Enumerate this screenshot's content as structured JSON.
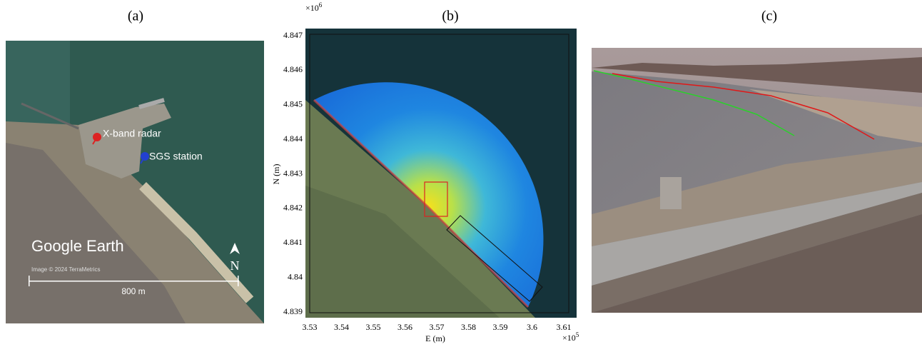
{
  "panels": [
    {
      "label": "(a)",
      "annotations": [
        "X-band radar",
        "SGS station"
      ],
      "watermark": "Google Earth",
      "credit": "Image © 2024 TerraMetrics",
      "scale": "800 m",
      "north": "N"
    },
    {
      "label": "(b)",
      "ylabel": "N (m)",
      "xlabel": "E (m)",
      "yexponent": "×10",
      "yexponent_power": "6",
      "xexponent": "×10",
      "xexponent_power": "5",
      "yticks": [
        "4.847",
        "4.846",
        "4.845",
        "4.844",
        "4.843",
        "4.842",
        "4.841",
        "4.84",
        "4.839"
      ],
      "xticks": [
        "3.53",
        "3.54",
        "3.55",
        "3.56",
        "3.57",
        "3.58",
        "3.59",
        "3.6",
        "3.61"
      ]
    },
    {
      "label": "(c)"
    }
  ]
}
